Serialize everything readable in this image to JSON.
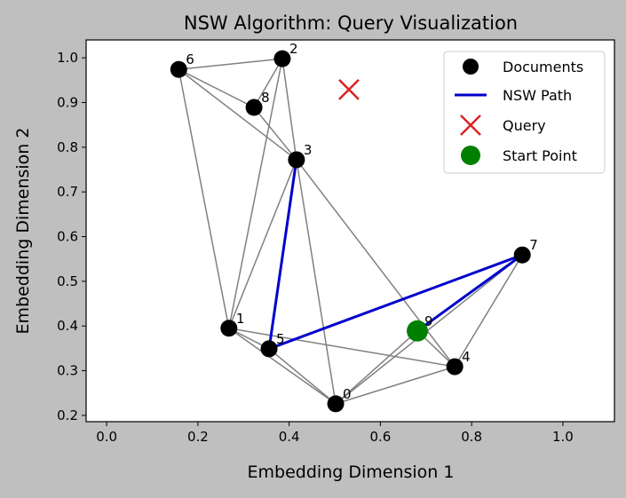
{
  "chart_data": {
    "type": "scatter",
    "title": "NSW Algorithm: Query Visualization",
    "xlabel": "Embedding Dimension 1",
    "ylabel": "Embedding Dimension 2",
    "xlim": [
      -0.045,
      1.113
    ],
    "ylim": [
      0.186,
      1.04
    ],
    "xticks": [
      "0.0",
      "0.2",
      "0.4",
      "0.6",
      "0.8",
      "1.0"
    ],
    "xtick_values": [
      0,
      0.2,
      0.4,
      0.6,
      0.8,
      1.0
    ],
    "yticks": [
      "0.2",
      "0.3",
      "0.4",
      "0.5",
      "0.6",
      "0.7",
      "0.8",
      "0.9",
      "1.0"
    ],
    "ytick_values": [
      0.2,
      0.3,
      0.4,
      0.5,
      0.6,
      0.7,
      0.8,
      0.9,
      1.0
    ],
    "grid": false,
    "legend_placement": "top-right",
    "documents": [
      {
        "label": "0",
        "x": 0.502,
        "y": 0.226
      },
      {
        "label": "1",
        "x": 0.268,
        "y": 0.395
      },
      {
        "label": "2",
        "x": 0.385,
        "y": 0.998
      },
      {
        "label": "3",
        "x": 0.416,
        "y": 0.772
      },
      {
        "label": "4",
        "x": 0.763,
        "y": 0.309
      },
      {
        "label": "5",
        "x": 0.356,
        "y": 0.349
      },
      {
        "label": "6",
        "x": 0.158,
        "y": 0.974
      },
      {
        "label": "7",
        "x": 0.911,
        "y": 0.559
      },
      {
        "label": "8",
        "x": 0.323,
        "y": 0.889
      },
      {
        "label": "9",
        "x": 0.681,
        "y": 0.389
      }
    ],
    "edges": [
      [
        6,
        2
      ],
      [
        6,
        8
      ],
      [
        6,
        3
      ],
      [
        6,
        1
      ],
      [
        2,
        8
      ],
      [
        2,
        3
      ],
      [
        2,
        1
      ],
      [
        8,
        3
      ],
      [
        3,
        0
      ],
      [
        3,
        1
      ],
      [
        3,
        4
      ],
      [
        3,
        5
      ],
      [
        1,
        5
      ],
      [
        1,
        0
      ],
      [
        1,
        4
      ],
      [
        5,
        0
      ],
      [
        0,
        9
      ],
      [
        0,
        7
      ],
      [
        0,
        4
      ],
      [
        9,
        4
      ],
      [
        9,
        7
      ],
      [
        7,
        4
      ],
      [
        5,
        7
      ]
    ],
    "nsw_path": [
      9,
      7,
      5,
      3
    ],
    "query": {
      "x": 0.531,
      "y": 0.929
    },
    "start_point": 9,
    "legend": [
      "Documents",
      "NSW Path",
      "Query",
      "Start Point"
    ],
    "colors": {
      "documents": "#000000",
      "edges": "#808080",
      "path": "#0000cc",
      "query": "#dd2222",
      "start": "#008000"
    }
  }
}
